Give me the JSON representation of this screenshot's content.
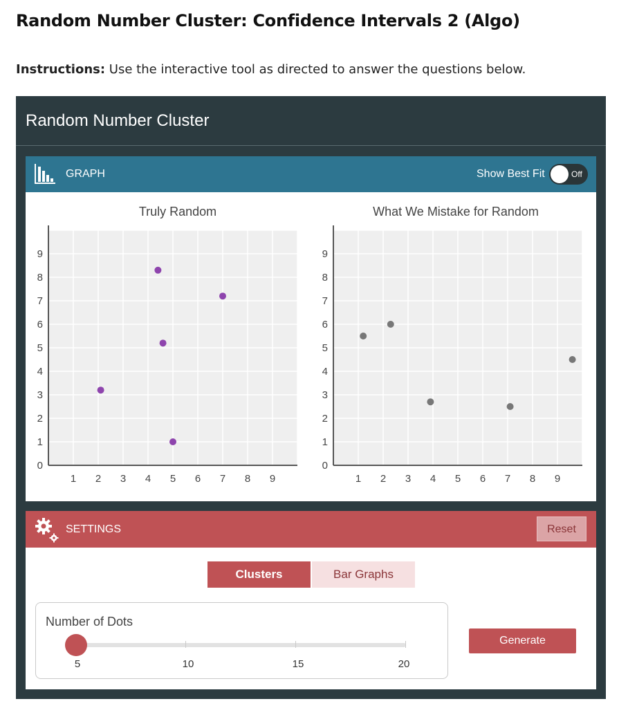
{
  "page": {
    "title": "Random Number Cluster: Confidence Intervals 2 (Algo)",
    "instructions_bold": "Instructions:",
    "instructions_text": " Use the interactive tool as directed to answer the questions below."
  },
  "widget": {
    "title": "Random Number Cluster"
  },
  "graph_panel": {
    "label": "GRAPH",
    "best_fit_label": "Show Best Fit",
    "toggle_state": "Off",
    "color_header": "#2e7591"
  },
  "chart_data": [
    {
      "type": "scatter",
      "title": "Truly Random",
      "xlabel": "",
      "ylabel": "",
      "xlim": [
        0,
        10
      ],
      "ylim": [
        0,
        10
      ],
      "xticks": [
        1,
        2,
        3,
        4,
        5,
        6,
        7,
        8,
        9
      ],
      "yticks": [
        0,
        1,
        2,
        3,
        4,
        5,
        6,
        7,
        8,
        9
      ],
      "grid": true,
      "point_color": "#8e44ad",
      "points": [
        {
          "x": 4.4,
          "y": 8.3
        },
        {
          "x": 7.0,
          "y": 7.2
        },
        {
          "x": 4.6,
          "y": 5.2
        },
        {
          "x": 2.1,
          "y": 3.2
        },
        {
          "x": 5.0,
          "y": 1.0
        }
      ]
    },
    {
      "type": "scatter",
      "title": "What We Mistake for Random",
      "xlabel": "",
      "ylabel": "",
      "xlim": [
        0,
        10
      ],
      "ylim": [
        0,
        10
      ],
      "xticks": [
        1,
        2,
        3,
        4,
        5,
        6,
        7,
        8,
        9
      ],
      "yticks": [
        0,
        1,
        2,
        3,
        4,
        5,
        6,
        7,
        8,
        9
      ],
      "grid": true,
      "point_color": "#777777",
      "points": [
        {
          "x": 1.2,
          "y": 5.5
        },
        {
          "x": 2.3,
          "y": 6.0
        },
        {
          "x": 3.9,
          "y": 2.7
        },
        {
          "x": 7.1,
          "y": 2.5
        },
        {
          "x": 9.6,
          "y": 4.5
        }
      ]
    }
  ],
  "settings_panel": {
    "label": "SETTINGS",
    "reset_label": "Reset",
    "color_header": "#bf5255",
    "tabs": [
      {
        "label": "Clusters",
        "active": true
      },
      {
        "label": "Bar Graphs",
        "active": false
      }
    ],
    "dots": {
      "label": "Number of Dots",
      "value": 5,
      "min": 5,
      "max": 20,
      "tick_labels": [
        "5",
        "10",
        "15",
        "20"
      ]
    },
    "generate_label": "Generate"
  }
}
